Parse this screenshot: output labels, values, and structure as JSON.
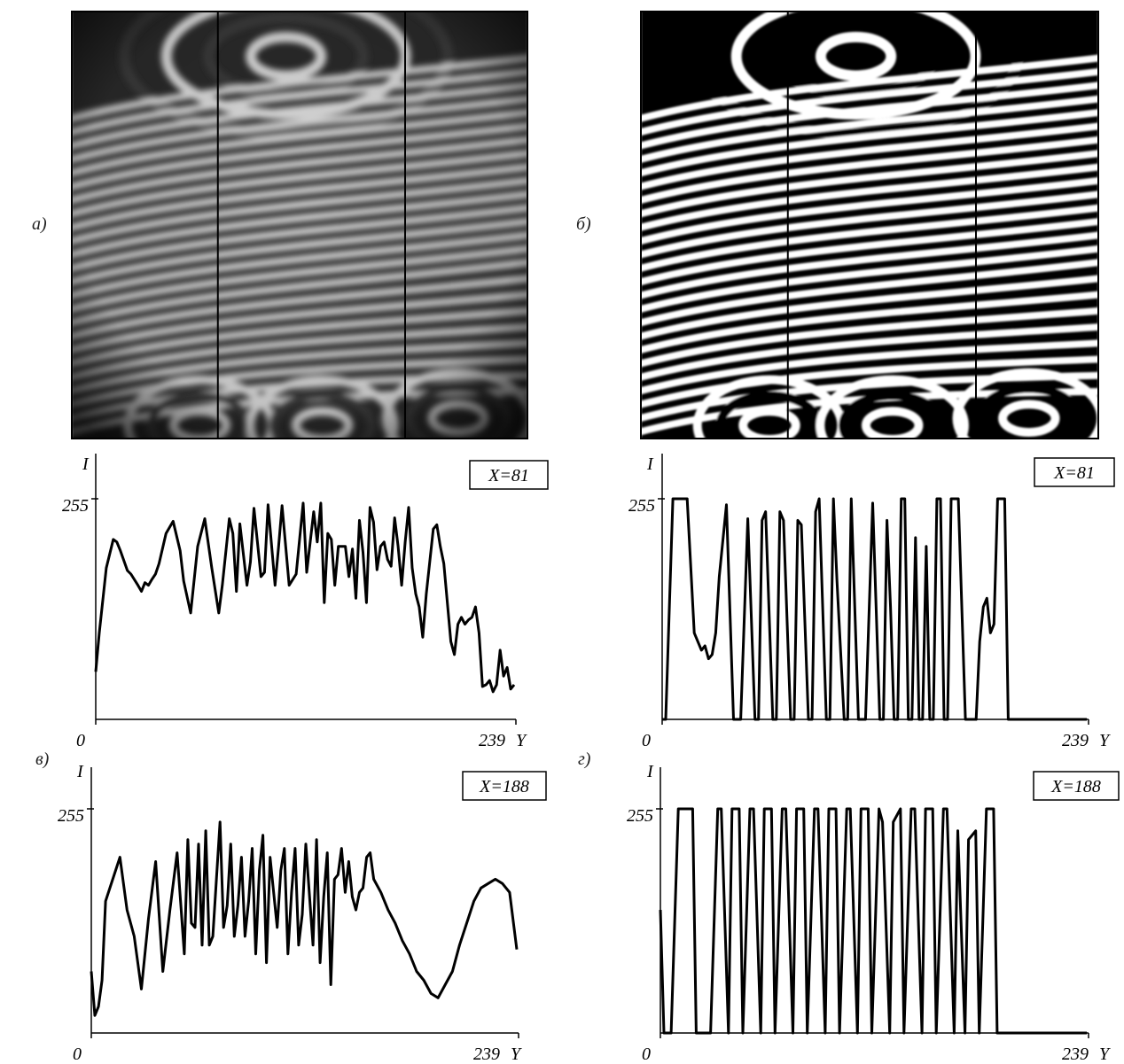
{
  "panel_labels": {
    "a": "а)",
    "b": "б)",
    "v": "в)",
    "g": "г)"
  },
  "chart_data": [
    {
      "type": "line",
      "panel": "а",
      "legend": "X=81",
      "ylabel": "I",
      "xlabel": "Y",
      "x_ticks": [
        "0",
        "239"
      ],
      "y_ticks": [
        "255"
      ],
      "xlim": [
        0,
        239
      ],
      "ylim": [
        0,
        255
      ],
      "x": [
        0,
        2,
        6,
        10,
        12,
        14,
        18,
        20,
        24,
        26,
        28,
        30,
        32,
        34,
        36,
        40,
        44,
        48,
        50,
        54,
        58,
        62,
        66,
        70,
        72,
        76,
        78,
        80,
        82,
        86,
        88,
        90,
        94,
        96,
        98,
        102,
        104,
        106,
        110,
        114,
        118,
        120,
        124,
        126,
        128,
        130,
        132,
        134,
        136,
        138,
        142,
        144,
        146,
        148,
        150,
        152,
        154,
        156,
        158,
        160,
        162,
        164,
        166,
        168,
        170,
        172,
        174,
        176,
        178,
        180,
        182,
        184,
        186,
        188,
        192,
        194,
        196,
        198,
        202,
        204,
        206,
        208,
        210,
        212,
        214,
        216,
        218,
        220,
        222,
        224,
        226,
        228,
        230,
        232,
        234,
        236,
        238
      ],
      "y": [
        55,
        100,
        175,
        208,
        205,
        195,
        172,
        168,
        155,
        148,
        158,
        155,
        162,
        168,
        180,
        215,
        229,
        195,
        160,
        123,
        200,
        232,
        175,
        123,
        155,
        232,
        215,
        148,
        226,
        155,
        182,
        244,
        165,
        170,
        248,
        155,
        200,
        247,
        155,
        168,
        250,
        170,
        240,
        205,
        250,
        135,
        215,
        208,
        155,
        200,
        200,
        165,
        197,
        140,
        230,
        193,
        135,
        245,
        228,
        173,
        200,
        205,
        185,
        177,
        233,
        200,
        155,
        205,
        245,
        175,
        145,
        130,
        95,
        145,
        220,
        225,
        200,
        180,
        90,
        75,
        110,
        118,
        110,
        115,
        118,
        130,
        100,
        38,
        40,
        45,
        32,
        40,
        80,
        50,
        60,
        35,
        40
      ]
    },
    {
      "type": "line",
      "panel": "б",
      "legend": "X=81",
      "ylabel": "I",
      "xlabel": "Y",
      "x_ticks": [
        "0",
        "239"
      ],
      "y_ticks": [
        "255"
      ],
      "xlim": [
        0,
        239
      ],
      "ylim": [
        0,
        255
      ],
      "x": [
        0,
        2,
        6,
        10,
        14,
        18,
        22,
        24,
        26,
        28,
        30,
        32,
        36,
        40,
        44,
        48,
        52,
        54,
        56,
        58,
        62,
        64,
        66,
        68,
        72,
        74,
        76,
        78,
        82,
        84,
        86,
        88,
        92,
        94,
        96,
        98,
        102,
        104,
        106,
        110,
        114,
        118,
        122,
        124,
        126,
        128,
        130,
        132,
        134,
        136,
        138,
        140,
        142,
        144,
        146,
        148,
        150,
        152,
        154,
        156,
        158,
        160,
        162,
        166,
        170,
        172,
        176,
        178,
        180,
        182,
        184,
        186,
        188,
        190,
        192,
        194,
        196,
        198,
        200,
        202,
        204,
        206,
        208,
        210,
        212,
        214,
        216,
        218,
        220,
        222,
        224,
        226,
        228,
        230,
        232,
        234,
        236,
        238
      ],
      "y": [
        0,
        0,
        255,
        255,
        255,
        100,
        80,
        85,
        70,
        75,
        100,
        165,
        248,
        0,
        0,
        232,
        0,
        0,
        230,
        240,
        0,
        0,
        240,
        230,
        0,
        0,
        230,
        225,
        0,
        0,
        240,
        255,
        0,
        0,
        255,
        160,
        0,
        0,
        255,
        0,
        0,
        250,
        0,
        0,
        230,
        130,
        0,
        0,
        255,
        255,
        0,
        0,
        210,
        0,
        0,
        200,
        0,
        0,
        255,
        255,
        0,
        0,
        255,
        255,
        0,
        0,
        0,
        90,
        130,
        140,
        100,
        110,
        255,
        255,
        255,
        0,
        0,
        0,
        0,
        0,
        0,
        0,
        0,
        0,
        0,
        0,
        0,
        0,
        0,
        0,
        0,
        0,
        0,
        0,
        0,
        0,
        0,
        0
      ]
    },
    {
      "type": "line",
      "panel": "в",
      "legend": "X=188",
      "ylabel": "I",
      "xlabel": "Y",
      "x_ticks": [
        "0",
        "239"
      ],
      "y_ticks": [
        "255"
      ],
      "xlim": [
        0,
        239
      ],
      "ylim": [
        0,
        255
      ],
      "x": [
        0,
        2,
        4,
        6,
        8,
        12,
        16,
        20,
        24,
        28,
        32,
        36,
        40,
        44,
        48,
        52,
        54,
        56,
        58,
        60,
        62,
        64,
        66,
        68,
        72,
        74,
        76,
        78,
        80,
        82,
        84,
        86,
        88,
        90,
        92,
        94,
        96,
        98,
        100,
        104,
        106,
        108,
        110,
        112,
        114,
        116,
        118,
        120,
        124,
        126,
        128,
        130,
        132,
        134,
        136,
        138,
        140,
        142,
        144,
        146,
        148,
        150,
        152,
        154,
        156,
        158,
        162,
        166,
        170,
        174,
        178,
        182,
        186,
        190,
        194,
        198,
        202,
        206,
        210,
        214,
        218,
        222,
        226,
        230,
        234,
        238
      ],
      "y": [
        70,
        20,
        30,
        60,
        150,
        175,
        200,
        140,
        110,
        50,
        130,
        195,
        70,
        140,
        205,
        90,
        220,
        125,
        120,
        215,
        100,
        230,
        100,
        110,
        240,
        120,
        145,
        215,
        110,
        145,
        200,
        110,
        150,
        210,
        90,
        185,
        225,
        80,
        200,
        120,
        185,
        210,
        90,
        160,
        210,
        100,
        135,
        215,
        100,
        220,
        80,
        155,
        205,
        55,
        175,
        180,
        210,
        160,
        195,
        155,
        140,
        160,
        165,
        200,
        205,
        175,
        160,
        140,
        125,
        105,
        90,
        70,
        60,
        45,
        40,
        55,
        70,
        100,
        125,
        150,
        165,
        170,
        175,
        170,
        160,
        95
      ]
    },
    {
      "type": "line",
      "panel": "г",
      "legend": "X=188",
      "ylabel": "I",
      "xlabel": "Y",
      "x_ticks": [
        "0",
        "239"
      ],
      "y_ticks": [
        "255"
      ],
      "xlim": [
        0,
        239
      ],
      "ylim": [
        0,
        255
      ],
      "x": [
        0,
        2,
        4,
        6,
        10,
        14,
        18,
        20,
        24,
        28,
        32,
        34,
        38,
        40,
        44,
        46,
        50,
        52,
        56,
        58,
        62,
        64,
        68,
        70,
        74,
        76,
        80,
        82,
        86,
        88,
        92,
        94,
        98,
        100,
        104,
        106,
        110,
        112,
        116,
        118,
        122,
        124,
        128,
        130,
        134,
        136,
        140,
        142,
        146,
        148,
        152,
        154,
        158,
        160,
        164,
        166,
        170,
        172,
        176,
        178,
        182,
        186,
        188,
        190,
        192,
        194,
        198,
        202,
        206,
        210,
        214,
        218,
        222,
        226,
        230,
        234,
        238
      ],
      "y": [
        140,
        0,
        0,
        0,
        255,
        255,
        255,
        0,
        0,
        0,
        255,
        255,
        0,
        255,
        255,
        0,
        255,
        255,
        0,
        255,
        255,
        0,
        255,
        255,
        0,
        255,
        255,
        0,
        255,
        255,
        0,
        255,
        255,
        0,
        255,
        255,
        0,
        255,
        255,
        0,
        255,
        240,
        0,
        240,
        255,
        0,
        255,
        255,
        0,
        255,
        255,
        0,
        255,
        255,
        0,
        230,
        0,
        220,
        230,
        0,
        255,
        255,
        0,
        0,
        0,
        0,
        0,
        0,
        0,
        0,
        0,
        0,
        0,
        0,
        0,
        0,
        0
      ]
    }
  ]
}
